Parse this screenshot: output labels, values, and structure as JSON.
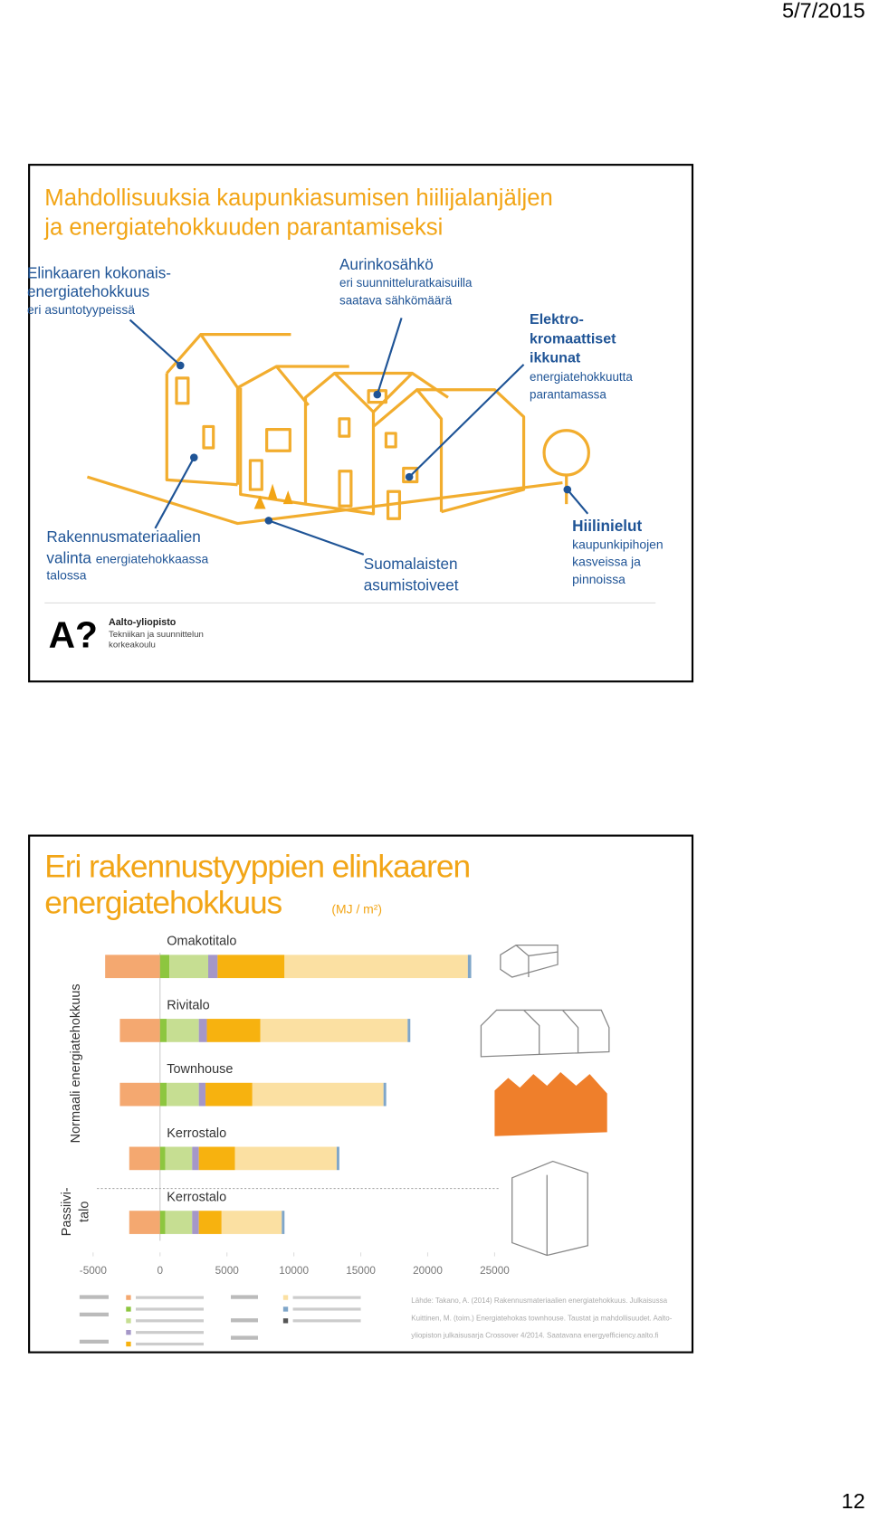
{
  "header": {
    "date": "5/7/2015"
  },
  "slide1": {
    "title": [
      "Mahdollisuuksia kaupunkiasumisen hiilijalanjäljen",
      "ja energiatehokkuuden parantamiseksi"
    ],
    "callouts": [
      {
        "heading": [
          "Elinkaaren kokonais-",
          "energiatehokkuus"
        ],
        "text": [
          "eri asuntotyypeissä"
        ]
      },
      {
        "heading": [
          "Aurinkosähkö"
        ],
        "text": [
          "eri suunnitteluratkaisuilla",
          "saatava sähkömäärä"
        ]
      },
      {
        "heading": [
          "Elektro-",
          "kromaattiset",
          "ikkunat"
        ],
        "text": [
          "energiatehokkuutta",
          "parantamassa"
        ]
      },
      {
        "heading": [
          "Rakennusmateriaalien",
          "valinta"
        ],
        "text": [
          "energiatehokkaassa",
          "talossa"
        ]
      },
      {
        "heading": [
          "Suomalaisten",
          "asumistoiveet"
        ]
      },
      {
        "heading": [
          "Hiilinielut"
        ],
        "text": [
          "kaupunkipihojen",
          "kasveissa ja",
          "pinnoissa"
        ]
      }
    ],
    "logo": {
      "mark": "A?",
      "name": "Aalto-yliopisto",
      "school": [
        "Tekniikan ja suunnittelun",
        "korkeakoulu"
      ]
    }
  },
  "slide2": {
    "title": [
      "Eri rakennustyyppien elinkaaren",
      "energiatehokkuus"
    ],
    "unit": "(MJ / m²)",
    "chart": {
      "type": "bar",
      "orientation": "horizontal",
      "stacked": true,
      "categories": [
        "Omakotitalo",
        "Rivitalo",
        "Townhouse",
        "Kerrostalo",
        "Kerrostalo"
      ],
      "groups": [
        [
          "Normaali energiatehokkuus"
        ],
        [
          "Passiivi-",
          "talo"
        ]
      ],
      "series": [
        {
          "color": "#f4a870",
          "values": [
            -4100,
            -3000,
            -3000,
            -2300,
            -2300
          ]
        },
        {
          "color": "#8dc63f",
          "values": [
            700,
            500,
            500,
            400,
            400
          ]
        },
        {
          "color": "#c6de92",
          "values": [
            2900,
            2400,
            2400,
            2000,
            2000
          ]
        },
        {
          "color": "#a597c8",
          "values": [
            700,
            600,
            500,
            500,
            500
          ]
        },
        {
          "color": "#f7b20f",
          "values": [
            5000,
            4000,
            3500,
            2700,
            1700
          ]
        },
        {
          "color": "#fbe0a2",
          "values": [
            13700,
            11000,
            9800,
            7600,
            4500
          ]
        },
        {
          "color": "#7fa6c9",
          "values": [
            250,
            200,
            200,
            200,
            200
          ]
        }
      ],
      "xlim": [
        -5000,
        25000
      ],
      "xticks": [
        -5000,
        0,
        5000,
        10000,
        15000,
        20000,
        25000
      ]
    },
    "source": [
      "Lähde: Takano, A. (2014) Rakennusmateriaalien energiatehokkuus. Julkaisussa",
      "Kuittinen, M. (toim.) Energiatehokas townhouse. Taustat ja mahdollisuudet. Aalto-",
      "yliopiston julkaisusarja Crossover 4/2014. Saatavana energyefficiency.aalto.fi"
    ]
  },
  "footer": {
    "page": "12"
  }
}
